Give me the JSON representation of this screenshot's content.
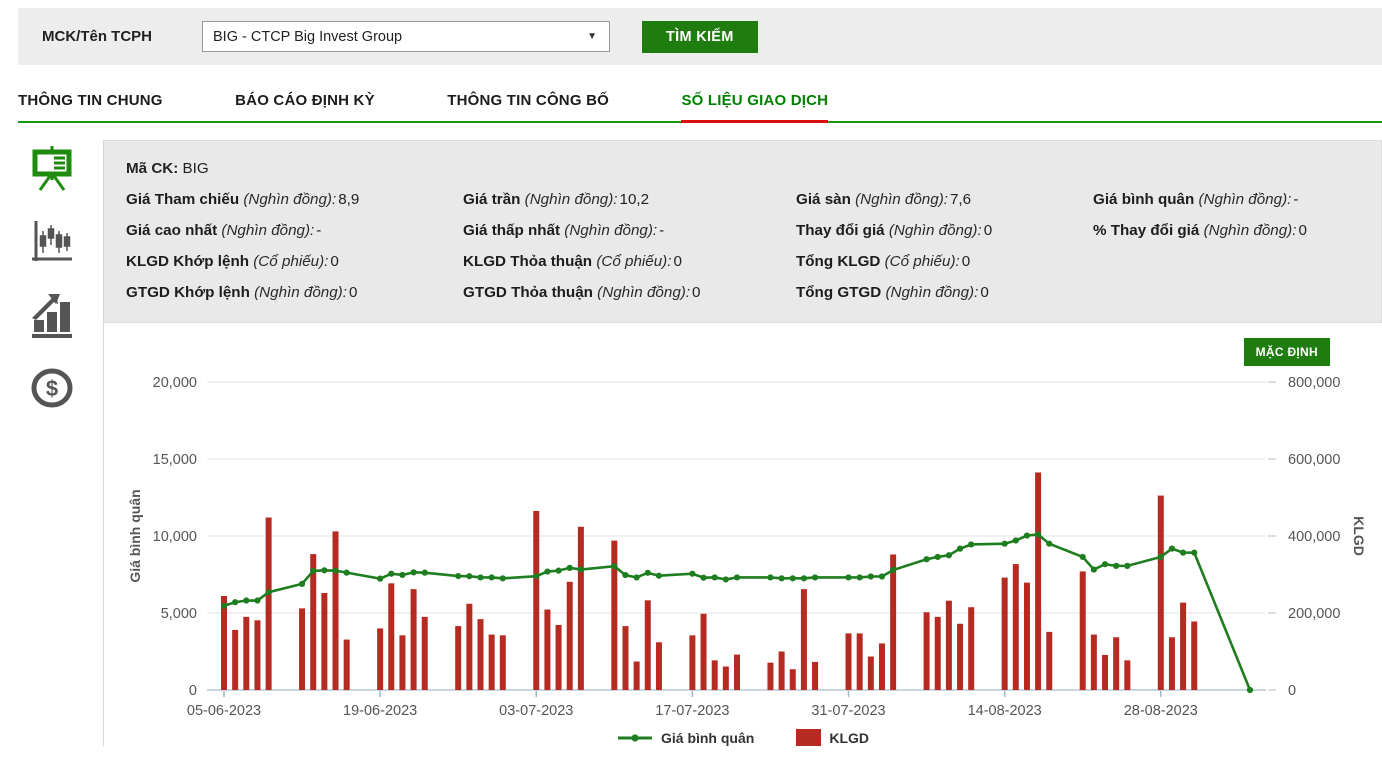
{
  "header": {
    "label": "MCK/Tên TCPH",
    "select_value": "BIG - CTCP Big Invest Group",
    "caret": "▼",
    "search_button": "TÌM KIẾM"
  },
  "tabs": [
    {
      "label": "THÔNG TIN CHUNG",
      "active": false
    },
    {
      "label": "BÁO CÁO ĐỊNH KỲ",
      "active": false
    },
    {
      "label": "THÔNG TIN CÔNG BỐ",
      "active": false
    },
    {
      "label": "SỐ LIỆU GIAO DỊCH",
      "active": true
    }
  ],
  "sidebar": {
    "icons": [
      {
        "name": "presentation-chart-icon",
        "active": true
      },
      {
        "name": "candlestick-chart-icon",
        "active": false
      },
      {
        "name": "bar-chart-trend-icon",
        "active": false
      },
      {
        "name": "dollar-coin-icon",
        "active": false
      }
    ]
  },
  "info_panel": {
    "ma_ck": {
      "label": "Mã CK:",
      "value": "BIG"
    },
    "fields": [
      {
        "label": "Giá Tham chiếu",
        "unit": "(Nghìn đồng):",
        "value": "8,9"
      },
      {
        "label": "Giá trần",
        "unit": "(Nghìn đồng):",
        "value": "10,2"
      },
      {
        "label": "Giá sàn",
        "unit": "(Nghìn đồng):",
        "value": "7,6"
      },
      {
        "label": "Giá bình quân",
        "unit": "(Nghìn đồng):",
        "value": "-"
      },
      {
        "label": "Giá cao nhất",
        "unit": "(Nghìn đồng):",
        "value": "-"
      },
      {
        "label": "Giá thấp nhất",
        "unit": "(Nghìn đồng):",
        "value": "-"
      },
      {
        "label": "Thay đổi giá",
        "unit": "(Nghìn đồng):",
        "value": "0"
      },
      {
        "label": "% Thay đổi giá",
        "unit": "(Nghìn đồng):",
        "value": "0"
      },
      {
        "label": "KLGD Khớp lệnh",
        "unit": "(Cổ phiếu):",
        "value": "0"
      },
      {
        "label": "KLGD Thỏa thuận",
        "unit": "(Cổ phiếu):",
        "value": "0"
      },
      {
        "label": "Tổng KLGD",
        "unit": "(Cổ phiếu):",
        "value": "0"
      },
      {
        "label": "GTGD Khớp lệnh",
        "unit": "(Nghìn đồng):",
        "value": "0"
      },
      {
        "label": "GTGD Thỏa thuận",
        "unit": "(Nghìn đồng):",
        "value": "0"
      },
      {
        "label": "Tổng GTGD",
        "unit": "(Nghìn đồng):",
        "value": "0"
      }
    ]
  },
  "chart": {
    "default_button": "MẶC ĐỊNH",
    "left_axis_title": "Giá bình quân",
    "right_axis_title": "KLGD",
    "left_ticks": [
      "0",
      "5,000",
      "10,000",
      "15,000",
      "20,000"
    ],
    "right_ticks": [
      "0",
      "200,000",
      "400,000",
      "600,000",
      "800,000"
    ],
    "legend": [
      {
        "label": "Giá bình quân",
        "type": "line",
        "color": "#1e7d1f"
      },
      {
        "label": "KLGD",
        "type": "bar",
        "color": "#b52a21"
      }
    ],
    "colors": {
      "bar": "#b52a21",
      "line": "#1e7d1f",
      "grid": "#e3e3e3",
      "axis": "#c9d6e2",
      "tick_text": "#555"
    }
  },
  "chart_data": {
    "type": "bar+line",
    "title": "",
    "left_ylabel": "Giá bình quân",
    "right_ylabel": "KLGD",
    "left_ylim": [
      0,
      20000
    ],
    "right_ylim": [
      0,
      800000
    ],
    "grid": true,
    "legend_position": "bottom",
    "x_tick_labels": [
      "05-06-2023",
      "19-06-2023",
      "03-07-2023",
      "17-07-2023",
      "31-07-2023",
      "14-08-2023",
      "28-08-2023"
    ],
    "categories": [
      "05-06-2023",
      "06-06-2023",
      "07-06-2023",
      "08-06-2023",
      "09-06-2023",
      "12-06-2023",
      "13-06-2023",
      "14-06-2023",
      "15-06-2023",
      "16-06-2023",
      "19-06-2023",
      "20-06-2023",
      "21-06-2023",
      "22-06-2023",
      "23-06-2023",
      "26-06-2023",
      "27-06-2023",
      "28-06-2023",
      "29-06-2023",
      "30-06-2023",
      "03-07-2023",
      "04-07-2023",
      "05-07-2023",
      "06-07-2023",
      "07-07-2023",
      "10-07-2023",
      "11-07-2023",
      "12-07-2023",
      "13-07-2023",
      "14-07-2023",
      "17-07-2023",
      "18-07-2023",
      "19-07-2023",
      "20-07-2023",
      "21-07-2023",
      "24-07-2023",
      "25-07-2023",
      "26-07-2023",
      "27-07-2023",
      "28-07-2023",
      "31-07-2023",
      "01-08-2023",
      "02-08-2023",
      "03-08-2023",
      "04-08-2023",
      "07-08-2023",
      "08-08-2023",
      "09-08-2023",
      "10-08-2023",
      "11-08-2023",
      "14-08-2023",
      "15-08-2023",
      "16-08-2023",
      "17-08-2023",
      "18-08-2023",
      "21-08-2023",
      "22-08-2023",
      "23-08-2023",
      "24-08-2023",
      "25-08-2023",
      "28-08-2023",
      "29-08-2023",
      "30-08-2023",
      "31-08-2023",
      "05-09-2023"
    ],
    "series": [
      {
        "name": "KLGD",
        "type": "bar",
        "axis": "right",
        "values": [
          244000,
          156000,
          190000,
          181000,
          448000,
          212000,
          353000,
          252000,
          412000,
          131000,
          160000,
          277000,
          142000,
          262000,
          190000,
          166000,
          224000,
          184000,
          144000,
          142000,
          465000,
          209000,
          169000,
          281000,
          424000,
          388000,
          166000,
          74000,
          233000,
          124000,
          142000,
          198000,
          77000,
          61000,
          92000,
          71000,
          100000,
          54000,
          262000,
          73000,
          147000,
          147000,
          87000,
          121000,
          352000,
          202000,
          190000,
          232000,
          172000,
          215000,
          292000,
          327000,
          279000,
          565000,
          151000,
          308000,
          144000,
          91000,
          137000,
          77000,
          505000,
          137000,
          227000,
          178000,
          0
        ]
      },
      {
        "name": "Giá bình quân",
        "type": "line",
        "axis": "left",
        "values": [
          5470,
          5700,
          5810,
          5810,
          6350,
          6890,
          7730,
          7770,
          7750,
          7620,
          7230,
          7550,
          7470,
          7640,
          7620,
          7400,
          7390,
          7310,
          7310,
          7250,
          7390,
          7690,
          7750,
          7930,
          7820,
          8040,
          7460,
          7310,
          7610,
          7420,
          7550,
          7290,
          7310,
          7180,
          7310,
          7310,
          7250,
          7250,
          7250,
          7310,
          7310,
          7310,
          7370,
          7370,
          7790,
          8490,
          8640,
          8750,
          9180,
          9450,
          9500,
          9710,
          10030,
          10100,
          9500,
          8640,
          7820,
          8170,
          8060,
          8060,
          8640,
          9180,
          8920,
          8920,
          0
        ]
      }
    ]
  }
}
